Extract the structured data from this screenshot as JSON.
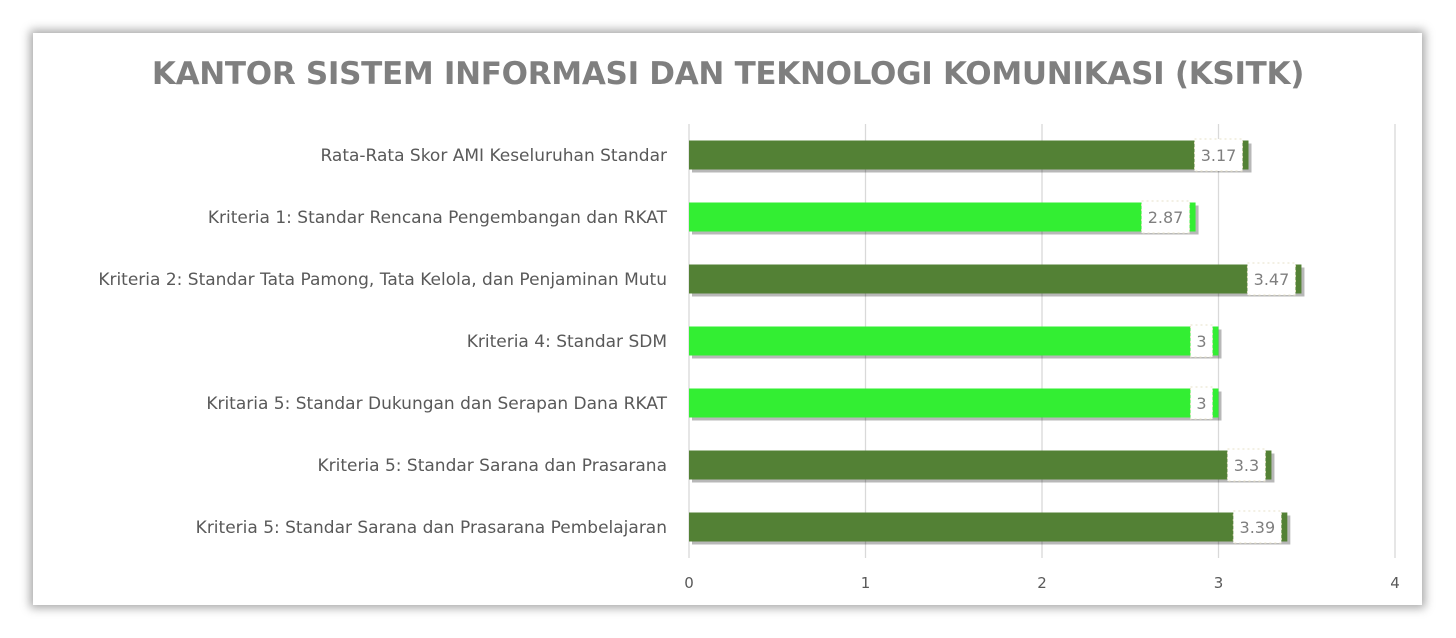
{
  "chart_data": {
    "type": "bar",
    "orientation": "horizontal",
    "title": "KANTOR SISTEM INFORMASI DAN TEKNOLOGI KOMUNIKASI (KSITK)",
    "categories": [
      "Rata-Rata Skor AMI Keseluruhan Standar",
      "Kriteria 1: Standar Rencana Pengembangan dan RKAT",
      "Kriteria 2: Standar Tata Pamong, Tata Kelola, dan Penjaminan Mutu",
      "Kriteria 4: Standar SDM",
      "Kritaria 5: Standar Dukungan dan Serapan Dana RKAT",
      "Kriteria 5: Standar Sarana dan Prasarana",
      "Kriteria 5: Standar Sarana dan Prasarana Pembelajaran"
    ],
    "values": [
      3.17,
      2.87,
      3.47,
      3,
      3,
      3.3,
      3.39
    ],
    "data_labels": [
      "3.17",
      "2.87",
      "3.47",
      "3",
      "3",
      "3.3",
      "3.39"
    ],
    "bar_colors": [
      "#538135",
      "#33ee33",
      "#538135",
      "#33ee33",
      "#33ee33",
      "#538135",
      "#538135"
    ],
    "xlim": [
      0,
      4
    ],
    "xticks": [
      "0",
      "1",
      "2",
      "3",
      "4"
    ],
    "grid": true,
    "legend": "none"
  },
  "colors": {
    "dark_green": "#538135",
    "bright_green": "#33ee33",
    "gridline": "#d9d9d9",
    "text": "#595959"
  }
}
